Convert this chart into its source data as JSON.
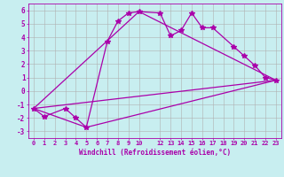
{
  "xlabel": "Windchill (Refroidissement éolien,°C)",
  "background_color": "#c8eef0",
  "line_color": "#aa00aa",
  "grid_color": "#b0b0b0",
  "xlim": [
    -0.5,
    23.5
  ],
  "ylim": [
    -3.5,
    6.5
  ],
  "yticks": [
    -3,
    -2,
    -1,
    0,
    1,
    2,
    3,
    4,
    5,
    6
  ],
  "xticks": [
    0,
    1,
    2,
    3,
    4,
    5,
    6,
    7,
    8,
    9,
    10,
    12,
    13,
    14,
    15,
    16,
    17,
    18,
    19,
    20,
    21,
    22,
    23
  ],
  "xtick_labels": [
    "0",
    "1",
    "2",
    "3",
    "4",
    "5",
    "6",
    "7",
    "8",
    "9",
    "10",
    "12",
    "13",
    "14",
    "15",
    "16",
    "17",
    "18",
    "19",
    "20",
    "21",
    "22",
    "23"
  ],
  "series1_x": [
    0,
    1,
    3,
    4,
    5,
    7,
    8,
    9,
    10,
    12,
    13,
    14,
    15,
    16,
    17,
    19,
    20,
    21,
    22,
    23
  ],
  "series1_y": [
    -1.3,
    -1.9,
    -1.3,
    -2.0,
    -2.7,
    3.7,
    5.2,
    5.8,
    5.9,
    5.8,
    4.1,
    4.5,
    5.8,
    4.7,
    4.7,
    3.3,
    2.6,
    1.9,
    1.0,
    0.8
  ],
  "series2_x": [
    0,
    23
  ],
  "series2_y": [
    -1.3,
    0.8
  ],
  "series3_x": [
    0,
    5,
    23
  ],
  "series3_y": [
    -1.3,
    -2.7,
    0.8
  ],
  "series4_x": [
    0,
    10,
    23
  ],
  "series4_y": [
    -1.3,
    5.9,
    0.8
  ],
  "marker": "*",
  "markersize": 4,
  "linewidth": 0.9
}
